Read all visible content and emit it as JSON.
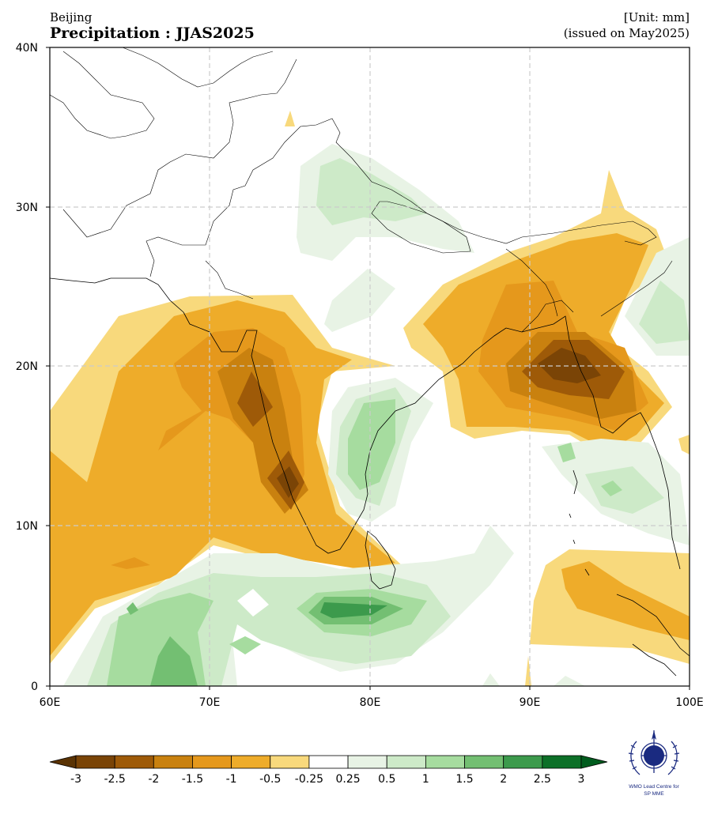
{
  "header": {
    "location": "Beijing",
    "title": "Precipitation : JJAS2025",
    "unit": "[Unit: mm]",
    "issued": "(issued on May2025)"
  },
  "map": {
    "lon_range": [
      60,
      100
    ],
    "lat_range": [
      0,
      40
    ],
    "x_ticks": [
      "60E",
      "70E",
      "80E",
      "90E",
      "100E"
    ],
    "y_ticks": [
      "40N",
      "30N",
      "20N",
      "10N",
      "0"
    ],
    "grid": "dashed",
    "field": "precipitation anomaly"
  },
  "colorbar": {
    "labels": [
      "-3",
      "-2.5",
      "-2",
      "-1.5",
      "-1",
      "-0.5",
      "-0.25",
      "0.25",
      "0.5",
      "1",
      "1.5",
      "2",
      "2.5",
      "3"
    ],
    "colors": [
      "#7a4406",
      "#9e5a08",
      "#c9810f",
      "#e5981c",
      "#eeac2a",
      "#f8d97c",
      "#ffffff",
      "#e8f3e5",
      "#cdeac8",
      "#a6dc9f",
      "#73bf72",
      "#3c9a4c",
      "#0d7028"
    ],
    "under_color": "#5a3304",
    "over_color": "#005c1e"
  },
  "logo": {
    "line1": "WMO Lead Centre for",
    "line2": "SP MME",
    "icon": "wmo-emblem-icon"
  }
}
